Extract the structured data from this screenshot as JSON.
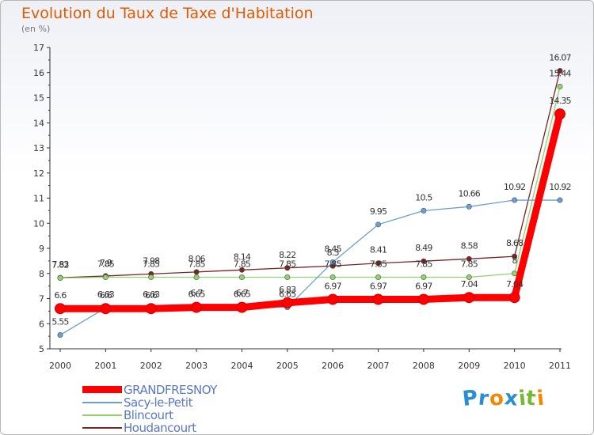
{
  "title": "Evolution du Taux de Taxe d'Habitation",
  "subtitle": "(en %)",
  "logo_letters": [
    {
      "ch": "P",
      "color": "#2a8fd0"
    },
    {
      "ch": "r",
      "color": "#2a8fd0"
    },
    {
      "ch": "o",
      "color": "#f08a00"
    },
    {
      "ch": "x",
      "color": "#2a8fd0"
    },
    {
      "ch": "i",
      "color": "#79b830"
    },
    {
      "ch": "t",
      "color": "#79b830"
    },
    {
      "ch": "i",
      "color": "#f08a00"
    }
  ],
  "chart_data": {
    "type": "line",
    "title": "Evolution du Taux de Taxe d'Habitation",
    "ylabel": "(en %)",
    "xlabel": "",
    "x": [
      "2000",
      "2001",
      "2002",
      "2003",
      "2004",
      "2005",
      "2006",
      "2007",
      "2008",
      "2009",
      "2010",
      "2011"
    ],
    "ylim": [
      5,
      17
    ],
    "yticks": [
      "5",
      "6",
      "7",
      "8",
      "9",
      "10",
      "11",
      "12",
      "13",
      "14",
      "15",
      "16",
      "17"
    ],
    "grid": false,
    "legend_position": "bottom-left",
    "series": [
      {
        "name": "GRANDFRESNOY",
        "color": "#ff0000",
        "values": [
          6.6,
          6.6,
          6.6,
          6.65,
          6.65,
          6.83,
          6.97,
          6.97,
          6.97,
          7.04,
          7.04,
          14.35
        ],
        "labels": [
          "6.6",
          "6.6",
          "6.6",
          "6.65",
          "6.65",
          "6.83",
          "6.97",
          "6.97",
          "6.97",
          "7.04",
          "7.04",
          "14.35"
        ]
      },
      {
        "name": "Sacy-le-Petit",
        "color": "#6a9ed6",
        "values": [
          5.55,
          6.63,
          6.63,
          6.7,
          6.7,
          6.65,
          8.45,
          9.95,
          10.5,
          10.66,
          10.92,
          10.92
        ],
        "labels": [
          "5.55",
          "6.63",
          "6.63",
          "6.7",
          "6.7",
          "6.65",
          "8.45",
          "9.95",
          "10.5",
          "10.66",
          "10.92",
          "10.92"
        ]
      },
      {
        "name": "Blincourt",
        "color": "#8fd36a",
        "values": [
          7.82,
          7.85,
          7.85,
          7.85,
          7.85,
          7.85,
          7.85,
          7.85,
          7.85,
          7.85,
          8,
          15.44
        ],
        "labels": [
          "7.82",
          "7.85",
          "7.85",
          "7.85",
          "7.85",
          "7.85",
          "7.85",
          "7.85",
          "7.85",
          "7.85",
          "8",
          "15.44"
        ]
      },
      {
        "name": "Houdancourt",
        "color": "#7a2424",
        "values": [
          7.83,
          7.9,
          7.98,
          8.06,
          8.14,
          8.22,
          8.3,
          8.41,
          8.49,
          8.58,
          8.68,
          16.07
        ],
        "labels": [
          "7.83",
          "7.9",
          "7.98",
          "8.06",
          "8.14",
          "8.22",
          "8.3",
          "8.41",
          "8.49",
          "8.58",
          "8.68",
          "16.07"
        ]
      }
    ]
  }
}
